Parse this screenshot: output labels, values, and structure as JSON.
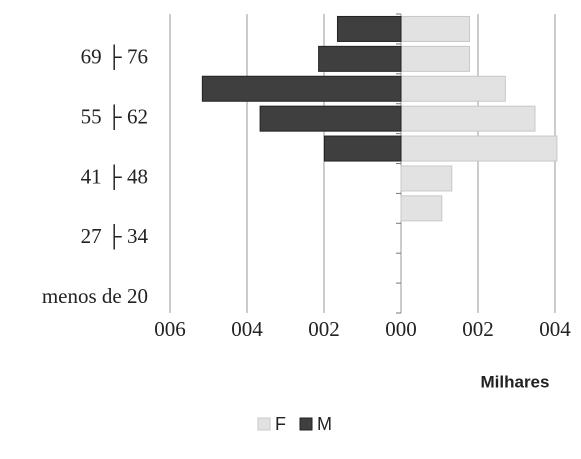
{
  "chart_data": {
    "type": "pyramid",
    "categories": [
      "menos de 20",
      null,
      "27 ├ 34",
      null,
      "41 ├ 48",
      null,
      "55 ├ 62",
      null,
      "69 ├ 76",
      null
    ],
    "series": [
      {
        "name": "F",
        "color": "#e2e2e2",
        "values": [
          0,
          0,
          0,
          106,
          132,
          405,
          348,
          271,
          178,
          178
        ]
      },
      {
        "name": "M",
        "color": "#3f3f3f",
        "values": [
          0,
          0,
          0,
          0,
          0,
          -199,
          -366,
          -516,
          -214,
          -165
        ]
      }
    ],
    "xlim": [
      -600,
      400
    ],
    "xticks": [
      {
        "value": -600,
        "label": "006"
      },
      {
        "value": -400,
        "label": "004"
      },
      {
        "value": -200,
        "label": "002"
      },
      {
        "value": 0,
        "label": "000"
      },
      {
        "value": 200,
        "label": "002"
      },
      {
        "value": 400,
        "label": "004"
      }
    ],
    "x_label": "Milhares",
    "grid": true,
    "legend": "bottom"
  }
}
